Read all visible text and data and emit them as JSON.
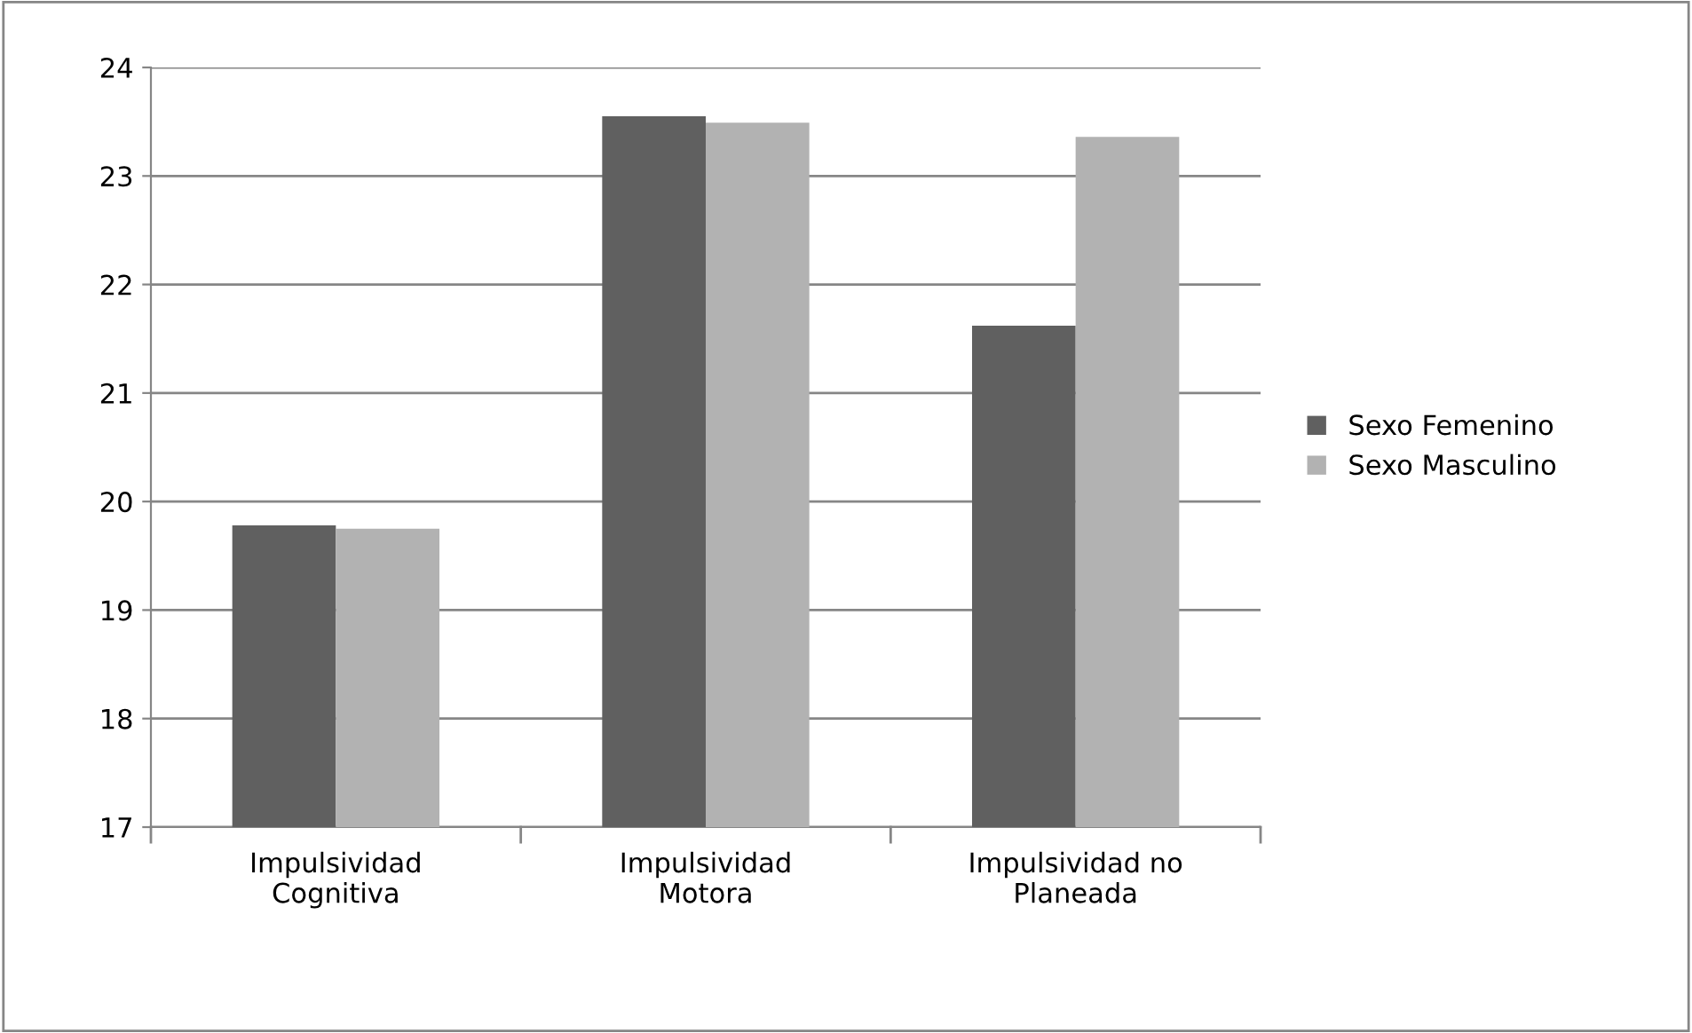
{
  "chart_data": {
    "type": "bar",
    "categories": [
      "Impulsividad\nCognitiva",
      "Impulsividad\nMotora",
      "Impulsividad no\nPlaneada"
    ],
    "series": [
      {
        "name": "Sexo Femenino",
        "color": "#606060",
        "values": [
          19.78,
          23.55,
          21.62
        ]
      },
      {
        "name": "Sexo Masculino",
        "color": "#b2b2b2",
        "values": [
          19.75,
          23.49,
          23.36
        ]
      }
    ],
    "ylim": [
      17,
      24
    ],
    "yticks": [
      17,
      18,
      19,
      20,
      21,
      22,
      23,
      24
    ],
    "grid": "y",
    "legend": "right"
  }
}
